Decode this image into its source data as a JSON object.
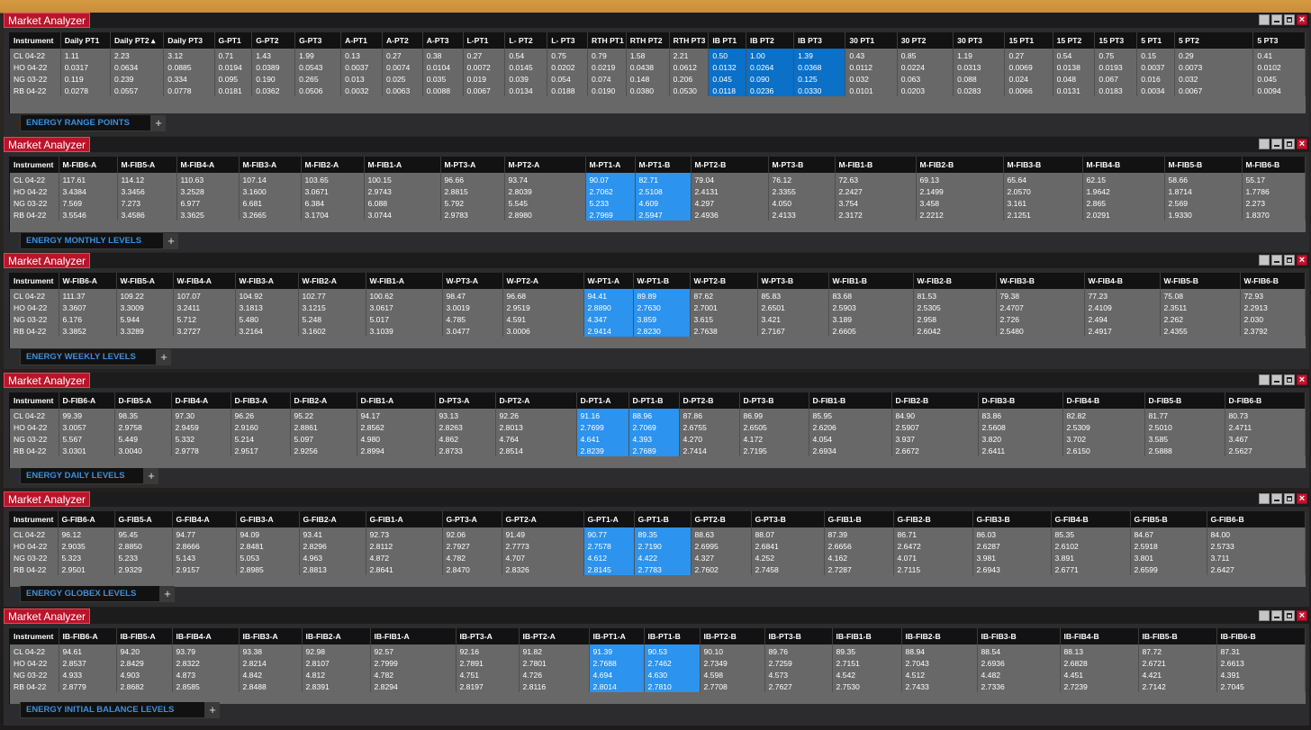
{
  "colors": {
    "title_bg": "#b8152b",
    "highlight": "#2c93ee",
    "highlight_selected": "#0a70c8",
    "tab_text": "#3c90df"
  },
  "icons": {
    "minimize": "minimize-icon",
    "restore": "restore-icon",
    "maximize": "maximize-icon",
    "close": "close-icon",
    "add": "plus-icon"
  },
  "windows": [
    {
      "title": "Market Analyzer",
      "tab": "ENERGY RANGE POINTS",
      "plus": "+",
      "columns": [
        "Instrument",
        "Daily PT1",
        "Daily PT2 ▴",
        "Daily PT3",
        "G-PT1",
        "G-PT2",
        "G-PT3",
        "A-PT1",
        "A-PT2",
        "A-PT3",
        "L-PT1",
        "L- PT2",
        "L- PT3",
        "RTH PT1",
        "RTH PT2",
        "RTH PT3",
        "IB PT1",
        "IB PT2",
        "IB PT3",
        "30 PT1",
        "30 PT2",
        "30 PT3",
        "15 PT1",
        "15 PT2",
        "15 PT3",
        "5 PT1",
        "5 PT2",
        "5 PT3"
      ],
      "rows": [
        [
          "CL 04-22",
          "1.11",
          "2.23",
          "3.12",
          "0.71",
          "1.43",
          "1.99",
          "0.13",
          "0.27",
          "0.38",
          "0.27",
          "0.54",
          "0.75",
          "0.79",
          "1.58",
          "2.21",
          "0.50",
          "1.00",
          "1.39",
          "0.43",
          "0.85",
          "1.19",
          "0.27",
          "0.54",
          "0.75",
          "0.15",
          "0.29",
          "0.41"
        ],
        [
          "HO 04-22",
          "0.0317",
          "0.0634",
          "0.0885",
          "0.0194",
          "0.0389",
          "0.0543",
          "0.0037",
          "0.0074",
          "0.0104",
          "0.0072",
          "0.0145",
          "0.0202",
          "0.0219",
          "0.0438",
          "0.0612",
          "0.0132",
          "0.0264",
          "0.0368",
          "0.0112",
          "0.0224",
          "0.0313",
          "0.0069",
          "0.0138",
          "0.0193",
          "0.0037",
          "0.0073",
          "0.0102"
        ],
        [
          "NG 03-22",
          "0.119",
          "0.239",
          "0.334",
          "0.095",
          "0.190",
          "0.265",
          "0.013",
          "0.025",
          "0.035",
          "0.019",
          "0.039",
          "0.054",
          "0.074",
          "0.148",
          "0.206",
          "0.045",
          "0.090",
          "0.125",
          "0.032",
          "0.063",
          "0.088",
          "0.024",
          "0.048",
          "0.067",
          "0.016",
          "0.032",
          "0.045"
        ],
        [
          "RB 04-22",
          "0.0278",
          "0.0557",
          "0.0778",
          "0.0181",
          "0.0362",
          "0.0506",
          "0.0032",
          "0.0063",
          "0.0088",
          "0.0067",
          "0.0134",
          "0.0188",
          "0.0190",
          "0.0380",
          "0.0530",
          "0.0118",
          "0.0236",
          "0.0330",
          "0.0101",
          "0.0203",
          "0.0283",
          "0.0066",
          "0.0131",
          "0.0183",
          "0.0034",
          "0.0067",
          "0.0094"
        ]
      ]
    },
    {
      "title": "Market Analyzer",
      "tab": "ENERGY MONTHLY LEVELS",
      "plus": "+",
      "columns": [
        "Instrument",
        "M-FIB6-A",
        "M-FIB5-A",
        "M-FIB4-A",
        "M-FIB3-A",
        "M-FIB2-A",
        "M-FIB1-A",
        "M-PT3-A",
        "M-PT2-A",
        "M-PT1-A",
        "M-PT1-B",
        "M-PT2-B",
        "M-PT3-B",
        "M-FIB1-B",
        "M-FIB2-B",
        "M-FIB3-B",
        "M-FIB4-B",
        "M-FIB5-B",
        "M-FIB6-B"
      ],
      "rows": [
        [
          "CL 04-22",
          "117.61",
          "114.12",
          "110.63",
          "107.14",
          "103.65",
          "100.15",
          "96.66",
          "93.74",
          "90.07",
          "82.71",
          "79.04",
          "76.12",
          "72.63",
          "69.13",
          "65.64",
          "62.15",
          "58.66",
          "55.17"
        ],
        [
          "HO 04-22",
          "3.4384",
          "3.3456",
          "3.2528",
          "3.1600",
          "3.0671",
          "2.9743",
          "2.8815",
          "2.8039",
          "2.7062",
          "2.5108",
          "2.4131",
          "2.3355",
          "2.2427",
          "2.1499",
          "2.0570",
          "1.9642",
          "1.8714",
          "1.7786"
        ],
        [
          "NG 03-22",
          "7.569",
          "7.273",
          "6.977",
          "6.681",
          "6.384",
          "6.088",
          "5.792",
          "5.545",
          "5.233",
          "4.609",
          "4.297",
          "4.050",
          "3.754",
          "3.458",
          "3.161",
          "2.865",
          "2.569",
          "2.273"
        ],
        [
          "RB 04-22",
          "3.5546",
          "3.4586",
          "3.3625",
          "3.2665",
          "3.1704",
          "3.0744",
          "2.9783",
          "2.8980",
          "2.7969",
          "2.5947",
          "2.4936",
          "2.4133",
          "2.3172",
          "2.2212",
          "2.1251",
          "2.0291",
          "1.9330",
          "1.8370"
        ]
      ]
    },
    {
      "title": "Market Analyzer",
      "tab": "ENERGY WEEKLY LEVELS",
      "plus": "+",
      "columns": [
        "Instrument",
        "W-FIB6-A",
        "W-FIB5-A",
        "W-FIB4-A",
        "W-FIB3-A",
        "W-FIB2-A",
        "W-FIB1-A",
        "W-PT3-A",
        "W-PT2-A",
        "W-PT1-A",
        "W-PT1-B",
        "W-PT2-B",
        "W-PT3-B",
        "W-FIB1-B",
        "W-FIB2-B",
        "W-FIB3-B",
        "W-FIB4-B",
        "W-FIB5-B",
        "W-FIB6-B"
      ],
      "rows": [
        [
          "CL 04-22",
          "111.37",
          "109.22",
          "107.07",
          "104.92",
          "102.77",
          "100.62",
          "98.47",
          "96.68",
          "94.41",
          "89.89",
          "87.62",
          "85.83",
          "83.68",
          "81.53",
          "79.38",
          "77.23",
          "75.08",
          "72.93"
        ],
        [
          "HO 04-22",
          "3.3607",
          "3.3009",
          "3.2411",
          "3.1813",
          "3.1215",
          "3.0617",
          "3.0019",
          "2.9519",
          "2.8890",
          "2.7630",
          "2.7001",
          "2.6501",
          "2.5903",
          "2.5305",
          "2.4707",
          "2.4109",
          "2.3511",
          "2.2913"
        ],
        [
          "NG 03-22",
          "6.176",
          "5.944",
          "5.712",
          "5.480",
          "5.248",
          "5.017",
          "4.785",
          "4.591",
          "4.347",
          "3.859",
          "3.615",
          "3.421",
          "3.189",
          "2.958",
          "2.726",
          "2.494",
          "2.262",
          "2.030"
        ],
        [
          "RB 04-22",
          "3.3852",
          "3.3289",
          "3.2727",
          "3.2164",
          "3.1602",
          "3.1039",
          "3.0477",
          "3.0006",
          "2.9414",
          "2.8230",
          "2.7638",
          "2.7167",
          "2.6605",
          "2.6042",
          "2.5480",
          "2.4917",
          "2.4355",
          "2.3792"
        ]
      ]
    },
    {
      "title": "Market Analyzer",
      "tab": "ENERGY DAILY LEVELS",
      "plus": "+",
      "columns": [
        "Instrument",
        "D-FIB6-A",
        "D-FIB5-A",
        "D-FIB4-A",
        "D-FIB3-A",
        "D-FIB2-A",
        "D-FIB1-A",
        "D-PT3-A",
        "D-PT2-A",
        "D-PT1-A",
        "D-PT1-B",
        "D-PT2-B",
        "D-PT3-B",
        "D-FIB1-B",
        "D-FIB2-B",
        "D-FIB3-B",
        "D-FIB4-B",
        "D-FIB5-B",
        "D-FIB6-B"
      ],
      "rows": [
        [
          "CL 04-22",
          "99.39",
          "98.35",
          "97.30",
          "96.26",
          "95.22",
          "94.17",
          "93.13",
          "92.26",
          "91.16",
          "88.96",
          "87.86",
          "86.99",
          "85.95",
          "84.90",
          "83.86",
          "82.82",
          "81.77",
          "80.73"
        ],
        [
          "HO 04-22",
          "3.0057",
          "2.9758",
          "2.9459",
          "2.9160",
          "2.8861",
          "2.8562",
          "2.8263",
          "2.8013",
          "2.7699",
          "2.7069",
          "2.6755",
          "2.6505",
          "2.6206",
          "2.5907",
          "2.5608",
          "2.5309",
          "2.5010",
          "2.4711"
        ],
        [
          "NG 03-22",
          "5.567",
          "5.449",
          "5.332",
          "5.214",
          "5.097",
          "4.980",
          "4.862",
          "4.764",
          "4.641",
          "4.393",
          "4.270",
          "4.172",
          "4.054",
          "3.937",
          "3.820",
          "3.702",
          "3.585",
          "3.467"
        ],
        [
          "RB 04-22",
          "3.0301",
          "3.0040",
          "2.9778",
          "2.9517",
          "2.9256",
          "2.8994",
          "2.8733",
          "2.8514",
          "2.8239",
          "2.7689",
          "2.7414",
          "2.7195",
          "2.6934",
          "2.6672",
          "2.6411",
          "2.6150",
          "2.5888",
          "2.5627"
        ]
      ]
    },
    {
      "title": "Market Analyzer",
      "tab": "ENERGY GLOBEX LEVELS",
      "plus": "+",
      "columns": [
        "Instrument",
        "G-FIB6-A",
        "G-FIB5-A",
        "G-FIB4-A",
        "G-FIB3-A",
        "G-FIB2-A",
        "G-FIB1-A",
        "G-PT3-A",
        "G-PT2-A",
        "G-PT1-A",
        "G-PT1-B",
        "G-PT2-B",
        "G-PT3-B",
        "G-FIB1-B",
        "G-FIB2-B",
        "G-FIB3-B",
        "G-FIB4-B",
        "G-FIB5-B",
        "G-FIB6-B"
      ],
      "rows": [
        [
          "CL 04-22",
          "96.12",
          "95.45",
          "94.77",
          "94.09",
          "93.41",
          "92.73",
          "92.06",
          "91.49",
          "90.77",
          "89.35",
          "88.63",
          "88.07",
          "87.39",
          "86.71",
          "86.03",
          "85.35",
          "84.67",
          "84.00"
        ],
        [
          "HO 04-22",
          "2.9035",
          "2.8850",
          "2.8666",
          "2.8481",
          "2.8296",
          "2.8112",
          "2.7927",
          "2.7773",
          "2.7578",
          "2.7190",
          "2.6995",
          "2.6841",
          "2.6656",
          "2.6472",
          "2.6287",
          "2.6102",
          "2.5918",
          "2.5733"
        ],
        [
          "NG 03-22",
          "5.323",
          "5.233",
          "5.143",
          "5.053",
          "4.963",
          "4.872",
          "4.782",
          "4.707",
          "4.612",
          "4.422",
          "4.327",
          "4.252",
          "4.162",
          "4.071",
          "3.981",
          "3.891",
          "3.801",
          "3.711"
        ],
        [
          "RB 04-22",
          "2.9501",
          "2.9329",
          "2.9157",
          "2.8985",
          "2.8813",
          "2.8641",
          "2.8470",
          "2.8326",
          "2.8145",
          "2.7783",
          "2.7602",
          "2.7458",
          "2.7287",
          "2.7115",
          "2.6943",
          "2.6771",
          "2.6599",
          "2.6427"
        ]
      ]
    },
    {
      "title": "Market Analyzer",
      "tab": "ENERGY INITIAL BALANCE LEVELS",
      "plus": "+",
      "columns": [
        "Instrument",
        "IB-FIB6-A",
        "IB-FIB5-A",
        "IB-FIB4-A",
        "IB-FIB3-A",
        "IB-FIB2-A",
        "IB-FIB1-A",
        "IB-PT3-A",
        "IB-PT2-A",
        "IB-PT1-A",
        "IB-PT1-B",
        "IB-PT2-B",
        "IB-PT3-B",
        "IB-FIB1-B",
        "IB-FIB2-B",
        "IB-FIB3-B",
        "IB-FIB4-B",
        "IB-FIB5-B",
        "IB-FIB6-B"
      ],
      "rows": [
        [
          "CL 04-22",
          "94.61",
          "94.20",
          "93.79",
          "93.38",
          "92.98",
          "92.57",
          "92.16",
          "91.82",
          "91.39",
          "90.53",
          "90.10",
          "89.76",
          "89.35",
          "88.94",
          "88.54",
          "88.13",
          "87.72",
          "87.31"
        ],
        [
          "HO 04-22",
          "2.8537",
          "2.8429",
          "2.8322",
          "2.8214",
          "2.8107",
          "2.7999",
          "2.7891",
          "2.7801",
          "2.7688",
          "2.7462",
          "2.7349",
          "2.7259",
          "2.7151",
          "2.7043",
          "2.6936",
          "2.6828",
          "2.6721",
          "2.6613"
        ],
        [
          "NG 03-22",
          "4.933",
          "4.903",
          "4.873",
          "4.842",
          "4.812",
          "4.782",
          "4.751",
          "4.726",
          "4.694",
          "4.630",
          "4.598",
          "4.573",
          "4.542",
          "4.512",
          "4.482",
          "4.451",
          "4.421",
          "4.391"
        ],
        [
          "RB 04-22",
          "2.8779",
          "2.8682",
          "2.8585",
          "2.8488",
          "2.8391",
          "2.8294",
          "2.8197",
          "2.8116",
          "2.8014",
          "2.7810",
          "2.7708",
          "2.7627",
          "2.7530",
          "2.7433",
          "2.7336",
          "2.7239",
          "2.7142",
          "2.7045"
        ]
      ]
    }
  ]
}
